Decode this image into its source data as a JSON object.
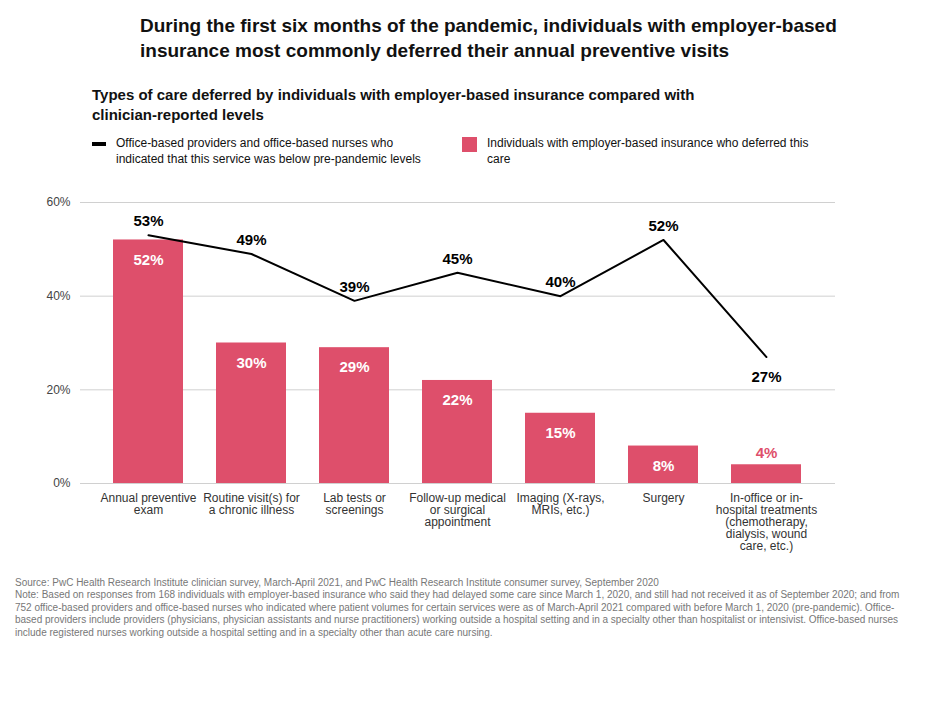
{
  "chart_data": {
    "type": "bar",
    "title": "During the first six months of the pandemic, individuals with employer-based insurance most commonly deferred their annual preventive visits",
    "subtitle": "Types of care deferred by individuals with employer-based insurance compared with clinician-reported levels",
    "categories": [
      "Annual preventive exam",
      "Routine visit(s) for a chronic illness",
      "Lab tests or screenings",
      "Follow-up medical or surgical appointment",
      "Imaging (X-rays, MRIs, etc.)",
      "Surgery",
      "In-office or in-hospital treatments (chemotherapy, dialysis, wound care, etc.)"
    ],
    "series": [
      {
        "name": "Office-based providers and office-based nurses who indicated that this service was below pre-pandemic levels",
        "type": "line",
        "color": "#000000",
        "values": [
          53,
          49,
          39,
          45,
          40,
          52,
          27
        ],
        "value_labels": [
          "53%",
          "49%",
          "39%",
          "45%",
          "40%",
          "52%",
          "27%"
        ]
      },
      {
        "name": "Individuals with employer-based insurance who deferred this care",
        "type": "bar",
        "color": "#de4f6b",
        "values": [
          52,
          30,
          29,
          22,
          15,
          8,
          4
        ],
        "value_labels": [
          "52%",
          "30%",
          "29%",
          "22%",
          "15%",
          "8%",
          "4%"
        ]
      }
    ],
    "ylim": [
      0,
      60
    ],
    "yticks": [
      {
        "value": 0,
        "label": "0%"
      },
      {
        "value": 20,
        "label": "20%"
      },
      {
        "value": 40,
        "label": "40%"
      },
      {
        "value": 60,
        "label": "60%"
      }
    ],
    "grid": true,
    "data_labels": true,
    "legend": "top",
    "source": "Source: PwC Health Research Institute clinician survey, March-April 2021, and PwC Health Research Institute consumer survey, September 2020",
    "note": "Note: Based on responses from 168 individuals with employer-based insurance who said they had delayed some care since March 1, 2020, and still had not received it as of September 2020; and from 752 office-based providers and office-based nurses who indicated where patient volumes for certain services were as of March-April 2021 compared with before March 1, 2020 (pre-pandemic). Office-based providers include providers (physicians, physician assistants and nurse practitioners) working outside a hospital setting and in a specialty other than hospitalist or intensivist. Office-based nurses include registered nurses working outside a hospital setting and in a specialty other than acute care nursing."
  }
}
